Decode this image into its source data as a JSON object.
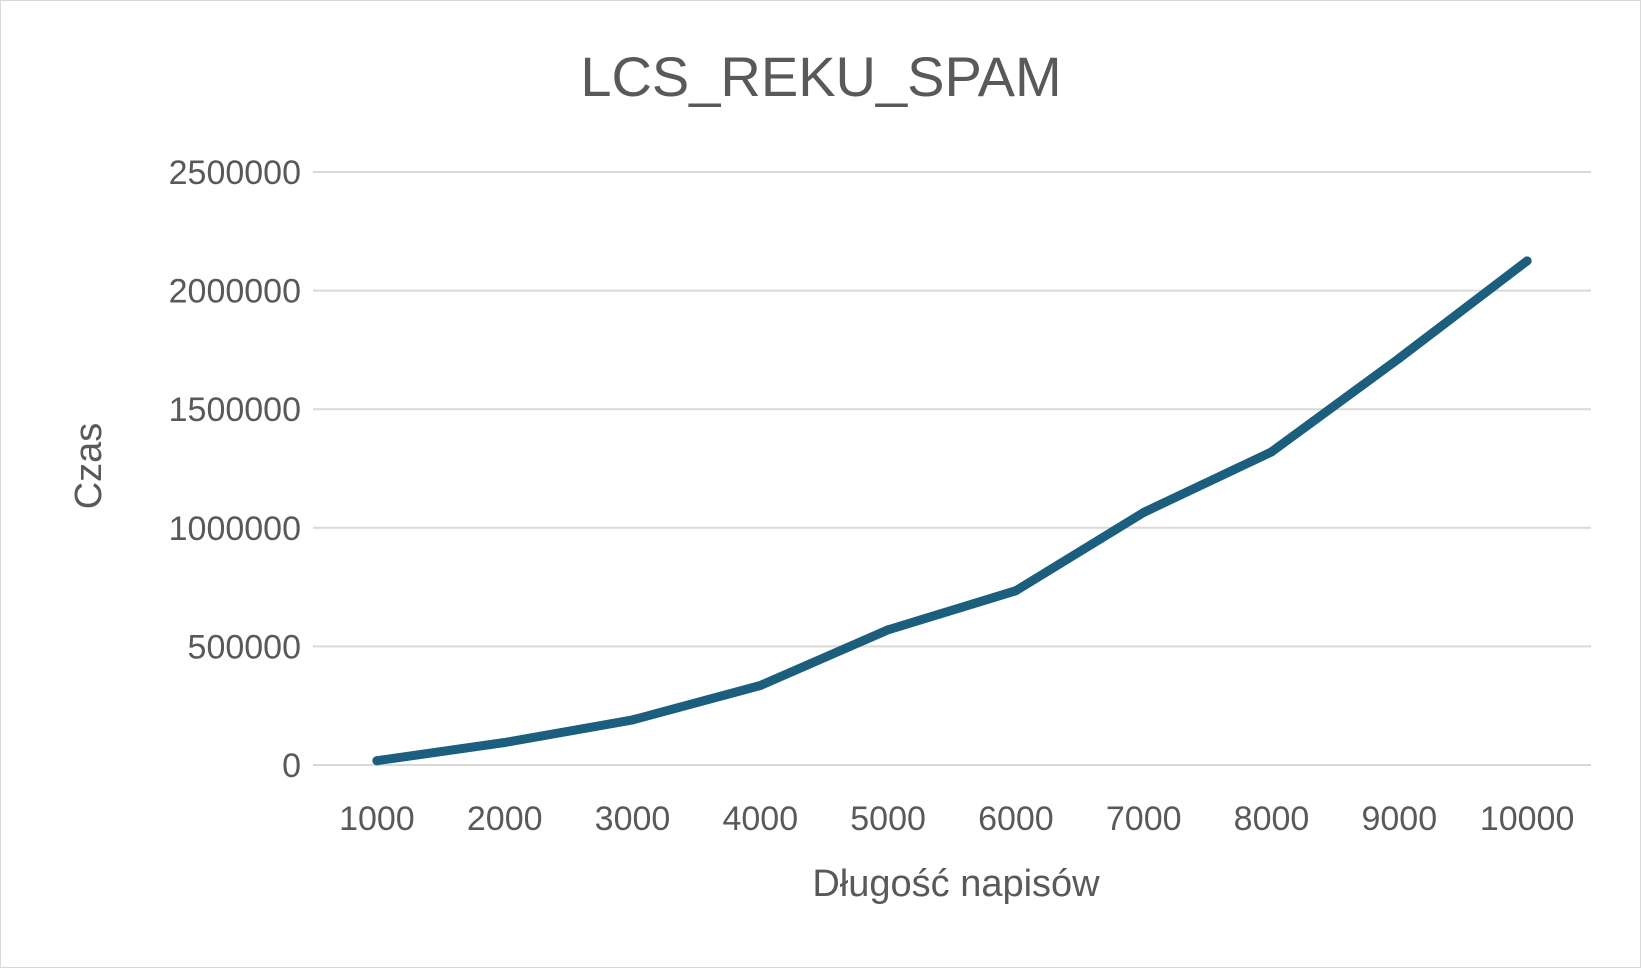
{
  "chart_data": {
    "type": "line",
    "title": "LCS_REKU_SPAM",
    "xlabel": "Długość napisów",
    "ylabel": "Czas",
    "categories": [
      "1000",
      "2000",
      "3000",
      "4000",
      "5000",
      "6000",
      "7000",
      "8000",
      "9000",
      "10000"
    ],
    "series": [
      {
        "values": [
          18000,
          95000,
          190000,
          335000,
          570000,
          735000,
          1065000,
          1320000,
          1715000,
          2125000
        ]
      }
    ],
    "ylim": [
      0,
      2500000
    ],
    "yticks": [
      "0",
      "500000",
      "1000000",
      "1500000",
      "2000000",
      "2500000"
    ],
    "grid": true,
    "legend": "none",
    "colors": {
      "series": "#1b5e7e",
      "grid": "#d9d9d9",
      "text": "#595959"
    }
  }
}
